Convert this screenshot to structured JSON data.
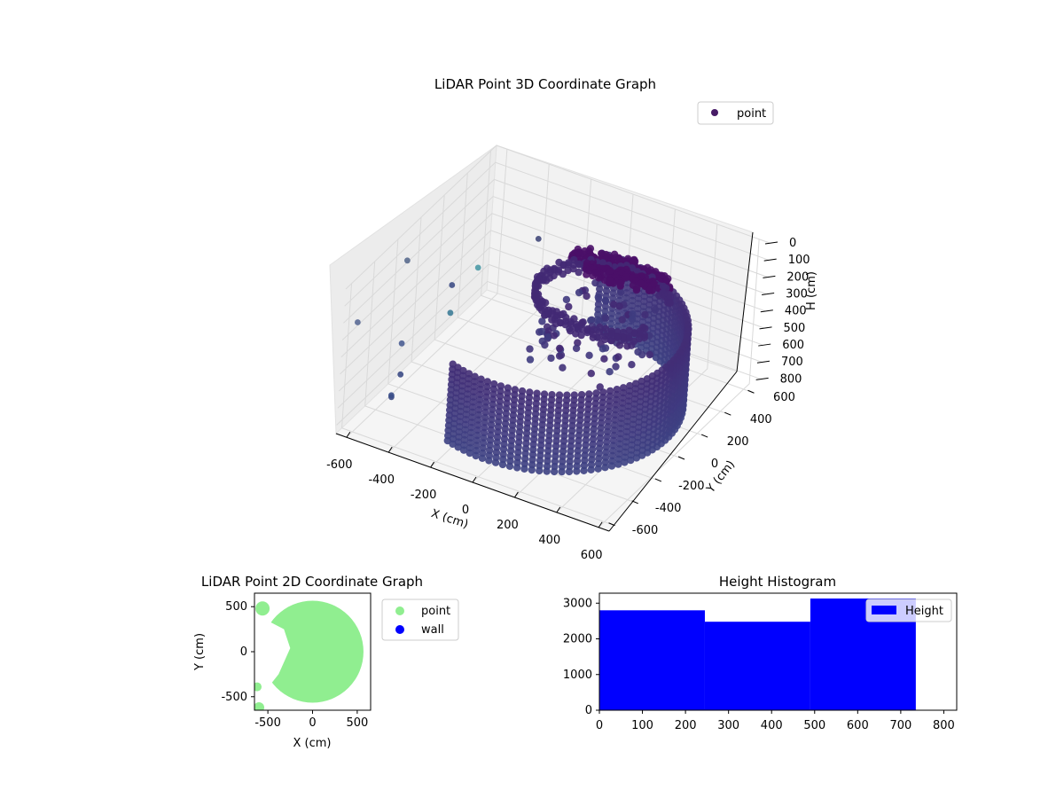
{
  "chart_data": [
    {
      "type": "scatter",
      "projection": "3d",
      "title": "LiDAR Point 3D Coordinate Graph",
      "xlabel": "X (cm)",
      "ylabel": "Y (cm)",
      "zlabel": "H (cm)",
      "xlim": [
        -650,
        650
      ],
      "ylim": [
        -650,
        650
      ],
      "zlim": [
        0,
        850
      ],
      "z_inverted": true,
      "xticks": [
        -600,
        -400,
        -200,
        0,
        200,
        400,
        600
      ],
      "yticks": [
        -600,
        -400,
        -200,
        0,
        200,
        400,
        600
      ],
      "zticks": [
        0,
        100,
        200,
        300,
        400,
        500,
        600,
        700,
        800
      ],
      "grid": true,
      "colormap": "viridis",
      "legend": {
        "position": "upper-right",
        "entries": [
          "point"
        ],
        "color": "#471b66"
      },
      "series": [
        {
          "name": "point",
          "structures": [
            {
              "kind": "wall-arc",
              "radius": 560,
              "theta_range_deg": [
                -110,
                100
              ],
              "h_top": 320,
              "h_bottom": 790
            },
            {
              "kind": "ceiling-cluster",
              "center": [
                100,
                380
              ],
              "radius": 170,
              "h": 230
            },
            {
              "kind": "upper-ring",
              "radius": 300,
              "theta_range_deg": [
                40,
                330
              ],
              "h": 210
            }
          ],
          "outliers": [
            {
              "x": -610,
              "y": -180,
              "h": 120,
              "color": "#5a6b8e"
            },
            {
              "x": -560,
              "y": 150,
              "h": 620,
              "color": "#3e7d98"
            },
            {
              "x": -470,
              "y": -30,
              "h": 300,
              "color": "#3f4f86"
            },
            {
              "x": -420,
              "y": 100,
              "h": 260,
              "color": "#4c9aa6"
            },
            {
              "x": -650,
              "y": -520,
              "h": 280,
              "color": "#5b6b96"
            },
            {
              "x": -430,
              "y": -600,
              "h": 560,
              "color": "#3b4f8a"
            },
            {
              "x": -470,
              "y": -520,
              "h": 640,
              "color": "#3d4b84"
            },
            {
              "x": -600,
              "y": -200,
              "h": 590,
              "color": "#4b5e94"
            },
            {
              "x": -520,
              "y": -350,
              "h": 640,
              "color": "#3c4b85"
            },
            {
              "x": -350,
              "y": 500,
              "h": 320,
              "color": "#42497a"
            }
          ]
        }
      ]
    },
    {
      "type": "scatter",
      "title": "LiDAR Point 2D Coordinate Graph",
      "xlabel": "X (cm)",
      "ylabel": "Y (cm)",
      "xlim": [
        -650,
        650
      ],
      "ylim": [
        -650,
        650
      ],
      "xticks": [
        -500,
        0,
        500
      ],
      "yticks": [
        -500,
        0,
        500
      ],
      "legend": {
        "position": "outside-right"
      },
      "series": [
        {
          "name": "point",
          "color": "#90ee90",
          "region": "disk-with-notch",
          "radius": 570
        },
        {
          "name": "wall",
          "color": "#0000ff",
          "points": []
        }
      ]
    },
    {
      "type": "bar",
      "subtype": "histogram",
      "title": "Height Histogram",
      "xlim": [
        0,
        830
      ],
      "ylim": [
        0,
        3280
      ],
      "xticks": [
        0,
        100,
        200,
        300,
        400,
        500,
        600,
        700,
        800
      ],
      "yticks": [
        0,
        1000,
        2000,
        3000
      ],
      "legend": {
        "position": "upper-right",
        "entries": [
          "Height"
        ]
      },
      "series": [
        {
          "name": "Height",
          "color": "#0000ff",
          "bins": [
            {
              "x0": 0,
              "x1": 245,
              "count": 2800
            },
            {
              "x0": 245,
              "x1": 490,
              "count": 2480
            },
            {
              "x0": 490,
              "x1": 735,
              "count": 3130
            }
          ]
        }
      ]
    }
  ]
}
